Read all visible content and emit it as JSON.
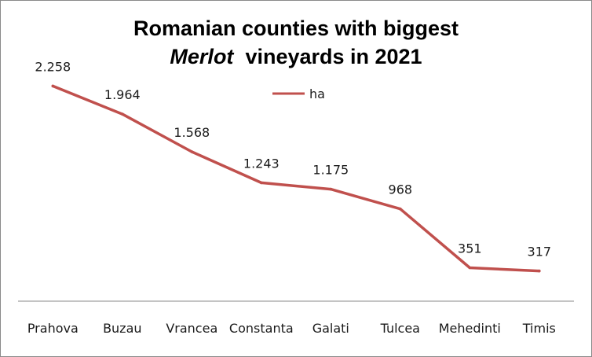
{
  "chart_data": {
    "type": "line",
    "title_line1": "Romanian counties with biggest",
    "title_line2_italic": "Merlot",
    "title_line2_rest": "vineyards in 2021",
    "categories": [
      "Prahova",
      "Buzau",
      "Vrancea",
      "Constanta",
      "Galati",
      "Tulcea",
      "Mehedinti",
      "Timis"
    ],
    "series": [
      {
        "name": "ha",
        "values": [
          2258,
          1964,
          1568,
          1243,
          1175,
          968,
          351,
          317
        ],
        "data_labels": [
          "2.258",
          "1.964",
          "1.568",
          "1.243",
          "1.175",
          "968",
          "351",
          "317"
        ]
      }
    ],
    "ylim": [
      0,
      2600
    ],
    "legend_position": "top-center",
    "grid": false,
    "line_color": "#c0504d"
  }
}
